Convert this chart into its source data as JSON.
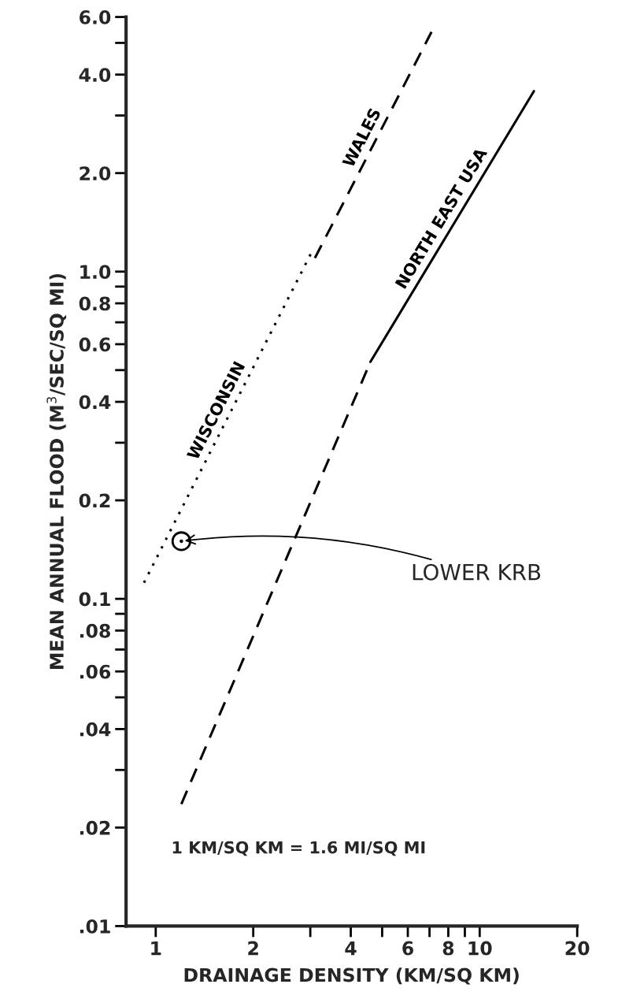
{
  "chart_data": {
    "type": "line",
    "xlabel": "DRAINAGE DENSITY (KM/SQ KM)",
    "ylabel": "MEAN ANNUAL FLOOD (M$^{3}$/SEC/SQ MI)",
    "log": "xy",
    "xlim": [
      0.81,
      20
    ],
    "ylim": [
      0.01,
      6
    ],
    "xticks": [
      1,
      2,
      {
        "value": 3,
        "label": null
      },
      4,
      {
        "value": 5,
        "label": null
      },
      6,
      {
        "value": 7,
        "label": null
      },
      8,
      {
        "value": 9,
        "label": null
      },
      10,
      20
    ],
    "yticks": [
      {
        "value": 0.01,
        "label": ".01"
      },
      {
        "value": 0.02,
        "label": ".02"
      },
      {
        "value": 0.03,
        "label": null
      },
      {
        "value": 0.04,
        "label": ".04"
      },
      {
        "value": 0.05,
        "label": null
      },
      {
        "value": 0.06,
        "label": ".06"
      },
      {
        "value": 0.07,
        "label": null
      },
      {
        "value": 0.08,
        "label": ".08"
      },
      {
        "value": 0.09,
        "label": null
      },
      {
        "value": 0.1,
        "label": "0.1"
      },
      {
        "value": 0.2,
        "label": "0.2"
      },
      {
        "value": 0.3,
        "label": null
      },
      {
        "value": 0.4,
        "label": "0.4"
      },
      {
        "value": 0.5,
        "label": null
      },
      {
        "value": 0.6,
        "label": "0.6"
      },
      {
        "value": 0.7,
        "label": null
      },
      {
        "value": 0.8,
        "label": "0.8"
      },
      {
        "value": 0.9,
        "label": null
      },
      {
        "value": 1,
        "label": "1.0"
      },
      {
        "value": 2,
        "label": "2.0"
      },
      {
        "value": 3,
        "label": null
      },
      {
        "value": 4,
        "label": "4.0"
      },
      {
        "value": 5,
        "label": null
      },
      {
        "value": 6,
        "label": "6.0"
      }
    ],
    "grid": false,
    "legend": false,
    "series": [
      {
        "name": "WISCONSIN",
        "color": "#000000",
        "line_style": "dotted",
        "x": [
          0.92,
          3.02
        ],
        "values": [
          0.112,
          1.14
        ]
      },
      {
        "name": "WALES",
        "color": "#000000",
        "line_style": "dashed",
        "x": [
          3.1,
          7.1
        ],
        "values": [
          1.1,
          5.4
        ]
      },
      {
        "color": "#000000",
        "line_style": "dashed",
        "x": [
          1.2,
          4.6
        ],
        "values": [
          0.0236,
          0.53
        ]
      },
      {
        "name": "NORTH EAST USA",
        "color": "#000000",
        "line_style": "solid",
        "x": [
          4.6,
          14.7
        ],
        "values": [
          0.53,
          3.56
        ]
      },
      {
        "type": "scatter",
        "marker": "circle",
        "color": "#000000",
        "x": [
          1.2
        ],
        "values": [
          0.15
        ]
      }
    ],
    "annotations": [
      {
        "text": "LOWER KRB",
        "x": 1.2,
        "y": 0.15
      },
      "1 KM/SQ KM = 1.6 MI/SQ MI"
    ]
  }
}
